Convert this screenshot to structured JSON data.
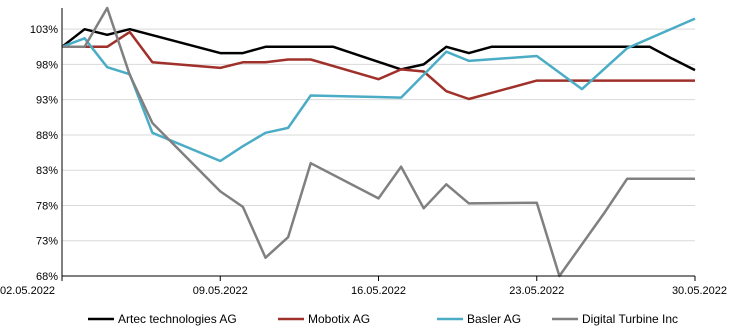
{
  "chart_data": {
    "type": "line",
    "title": "",
    "xlabel": "",
    "ylabel": "",
    "x": [
      0,
      1,
      2,
      3,
      4,
      5,
      6,
      7,
      8,
      9,
      10,
      11,
      12,
      13,
      14,
      15,
      16,
      17,
      18,
      19,
      20,
      21,
      22,
      23,
      24,
      25,
      26,
      27,
      28
    ],
    "x_ticks": [
      {
        "x": 0,
        "label": "02.05.2022"
      },
      {
        "x": 7,
        "label": "09.05.2022"
      },
      {
        "x": 14,
        "label": "16.05.2022"
      },
      {
        "x": 21,
        "label": "23.05.2022"
      },
      {
        "x": 28,
        "label": "30.05.2022"
      }
    ],
    "y_ticks": [
      68,
      73,
      78,
      83,
      88,
      93,
      98,
      103
    ],
    "ylim": [
      68,
      106
    ],
    "y_tick_suffix": "%",
    "grid": "horizontal",
    "legend_position": "bottom",
    "series": [
      {
        "name": "Artec technologies AG",
        "color": "#000000",
        "points": [
          [
            0,
            100.5
          ],
          [
            1,
            103.0
          ],
          [
            2,
            102.2
          ],
          [
            3,
            103.0
          ],
          [
            7,
            99.6
          ],
          [
            8,
            99.6
          ],
          [
            9,
            100.5
          ],
          [
            12,
            100.5
          ],
          [
            15,
            97.3
          ],
          [
            16,
            98.0
          ],
          [
            17,
            100.5
          ],
          [
            18,
            99.6
          ],
          [
            19,
            100.5
          ],
          [
            26,
            100.5
          ],
          [
            27,
            98.8
          ],
          [
            28,
            97.2
          ]
        ]
      },
      {
        "name": "Mobotix AG",
        "color": "#a0302a",
        "points": [
          [
            0,
            100.5
          ],
          [
            2,
            100.5
          ],
          [
            3,
            102.6
          ],
          [
            4,
            98.3
          ],
          [
            7,
            97.5
          ],
          [
            8,
            98.3
          ],
          [
            9,
            98.3
          ],
          [
            10,
            98.7
          ],
          [
            11,
            98.7
          ],
          [
            14,
            95.9
          ],
          [
            15,
            97.3
          ],
          [
            16,
            97.0
          ],
          [
            17,
            94.2
          ],
          [
            18,
            93.1
          ],
          [
            21,
            95.7
          ],
          [
            28,
            95.7
          ]
        ]
      },
      {
        "name": "Basler AG",
        "color": "#4bacc6",
        "points": [
          [
            0,
            100.5
          ],
          [
            1,
            101.7
          ],
          [
            2,
            97.6
          ],
          [
            3,
            96.6
          ],
          [
            4,
            88.3
          ],
          [
            7,
            84.3
          ],
          [
            8,
            86.4
          ],
          [
            9,
            88.3
          ],
          [
            10,
            89.0
          ],
          [
            11,
            93.6
          ],
          [
            15,
            93.3
          ],
          [
            17,
            99.8
          ],
          [
            18,
            98.5
          ],
          [
            21,
            99.2
          ],
          [
            23,
            94.5
          ],
          [
            25,
            100.3
          ],
          [
            28,
            104.5
          ]
        ]
      },
      {
        "name": "Digital Turbine Inc",
        "color": "#808080",
        "points": [
          [
            0,
            100.5
          ],
          [
            1,
            100.5
          ],
          [
            2,
            106.0
          ],
          [
            3,
            96.5
          ],
          [
            4,
            89.7
          ],
          [
            7,
            80.0
          ],
          [
            8,
            77.8
          ],
          [
            9,
            70.6
          ],
          [
            10,
            73.5
          ],
          [
            11,
            84.0
          ],
          [
            14,
            79.0
          ],
          [
            15,
            83.5
          ],
          [
            16,
            77.6
          ],
          [
            17,
            81.0
          ],
          [
            18,
            78.3
          ],
          [
            21,
            78.4
          ],
          [
            22,
            68.0
          ],
          [
            24,
            77.0
          ],
          [
            25,
            81.8
          ],
          [
            28,
            81.8
          ]
        ]
      }
    ]
  }
}
